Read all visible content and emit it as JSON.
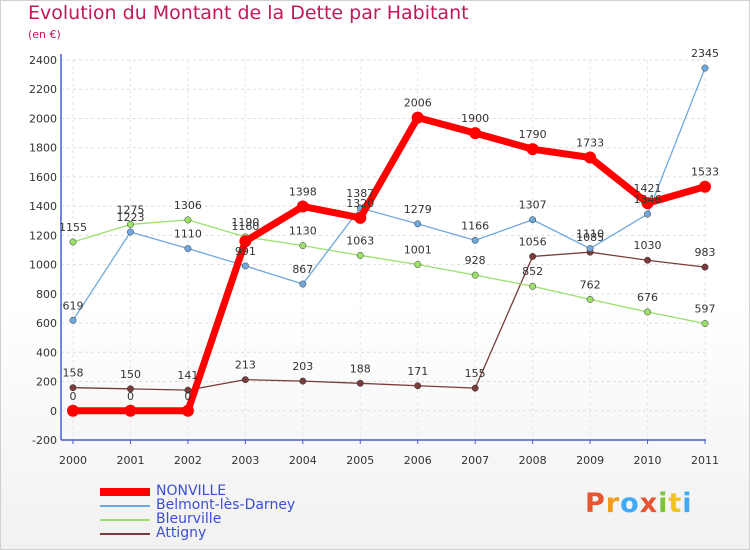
{
  "header": {
    "title": "Evolution du Montant de la Dette par Habitant",
    "subtitle": "(en €)"
  },
  "logo": {
    "letters": [
      "P",
      "r",
      "o",
      "x",
      "i",
      "t",
      "i"
    ],
    "colors": [
      "#e8542f",
      "#f29b1d",
      "#3fa9f5",
      "#e8542f",
      "#7cc242",
      "#f2c21d",
      "#3fa9f5"
    ]
  },
  "chart_data": {
    "type": "line",
    "x": [
      "2000",
      "2001",
      "2002",
      "2003",
      "2004",
      "2005",
      "2006",
      "2007",
      "2008",
      "2009",
      "2010",
      "2011"
    ],
    "ylim": [
      -200,
      2400
    ],
    "yticks": [
      "-200",
      "0",
      "200",
      "400",
      "600",
      "800",
      "1000",
      "1200",
      "1400",
      "1600",
      "1800",
      "2000",
      "2200",
      "2400"
    ],
    "grid": true,
    "legend_position": "bottom-left",
    "series": [
      {
        "name": "NONVILLE",
        "color": "#ff0000",
        "values": [
          0,
          0,
          0,
          1160,
          1398,
          1320,
          2006,
          1900,
          1790,
          1733,
          1421,
          1533
        ],
        "labels": [
          "0",
          "0",
          "0",
          "1160",
          "1398",
          "1320",
          "2006",
          "1900",
          "1790",
          "1733",
          "1421",
          "1533"
        ]
      },
      {
        "name": "Belmont-lès-Darney",
        "color": "#6fa8dc",
        "values": [
          619,
          1223,
          1110,
          991,
          867,
          1387,
          1279,
          1166,
          1307,
          1110,
          1346,
          2345
        ],
        "labels": [
          "619",
          "1223",
          "1110",
          "991",
          "867",
          "1387",
          "1279",
          "1166",
          "1307",
          "1110",
          "1346",
          "2345"
        ]
      },
      {
        "name": "Bleurville",
        "color": "#9be06b",
        "values": [
          1155,
          1275,
          1306,
          1190,
          1130,
          1063,
          1001,
          928,
          852,
          762,
          676,
          597
        ],
        "labels": [
          "1155",
          "1275",
          "1306",
          "1190",
          "1130",
          "1063",
          "1001",
          "928",
          "852",
          "762",
          "676",
          "597"
        ]
      },
      {
        "name": "Attigny",
        "color": "#7a3b3b",
        "values": [
          158,
          150,
          141,
          213,
          203,
          188,
          171,
          155,
          1056,
          1085,
          1030,
          983
        ],
        "labels": [
          "158",
          "150",
          "141",
          "213",
          "203",
          "188",
          "171",
          "155",
          "1056",
          "1085",
          "1030",
          "983"
        ]
      }
    ]
  }
}
